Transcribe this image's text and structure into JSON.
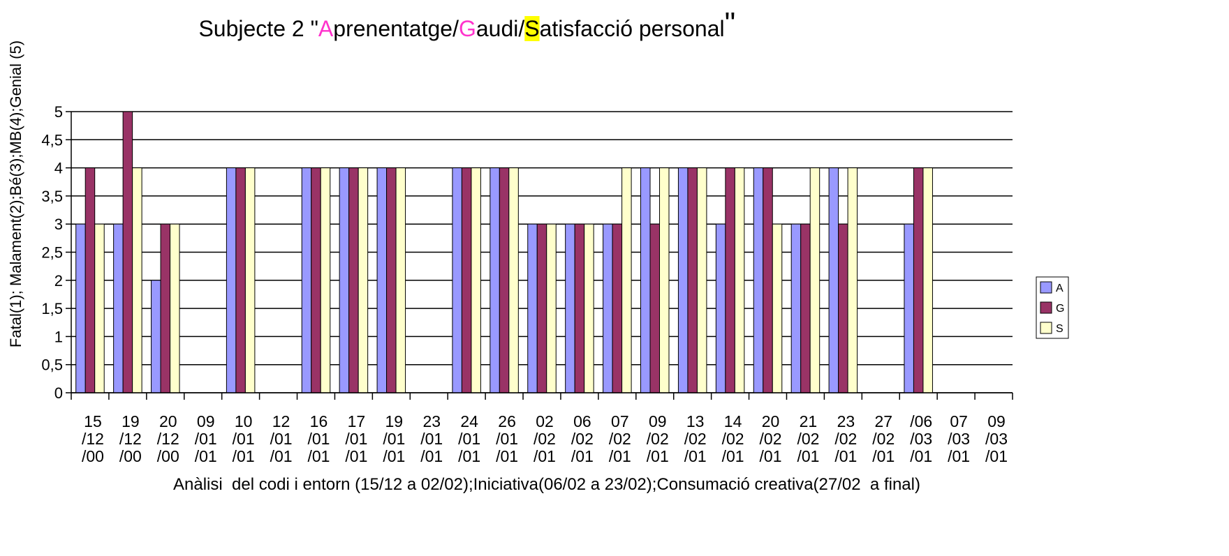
{
  "chart_data": {
    "type": "bar",
    "title": [
      "Subjecte 2 \"",
      "A",
      "prenentatge/",
      "G",
      "audi/",
      "S",
      "atisfacció personal",
      "\""
    ],
    "x_label": "Anàlisi  del codi i entorn (15/12 a 02/02);Iniciativa(06/02 a 23/02);Consumació creativa(27/02  a final)",
    "y_label": "Fatal(1); Malament(2);Bé(3);MB(4);Genial (5)",
    "categories": [
      "15/12/00",
      "19/12/00",
      "20/12/00",
      "09/01/01",
      "10/01/01",
      "12/01/01",
      "16/01/01",
      "17/01/01",
      "19/01/01",
      "23/01/01",
      "24/01/01",
      "26/01/01",
      "02/02/01",
      "06/02/01",
      "07/02/01",
      "09/02/01",
      "13/02/01",
      "14/02/01",
      "20/02/01",
      "21/02/01",
      "23/02/01",
      "27/02/01",
      "/06/03/01",
      "07/03/01",
      "09/03/01"
    ],
    "series": [
      {
        "name": "A",
        "color": "#9999ff",
        "values": [
          3,
          3,
          2,
          null,
          4,
          null,
          4,
          4,
          4,
          null,
          4,
          4,
          3,
          3,
          3,
          4,
          4,
          3,
          4,
          3,
          4,
          null,
          3,
          null,
          null
        ]
      },
      {
        "name": "G",
        "color": "#993366",
        "values": [
          4,
          5,
          3,
          null,
          4,
          null,
          4,
          4,
          4,
          null,
          4,
          4,
          3,
          3,
          3,
          3,
          4,
          4,
          4,
          3,
          3,
          null,
          4,
          null,
          null
        ]
      },
      {
        "name": "S",
        "color": "#ffffcc",
        "values": [
          3,
          4,
          3,
          null,
          4,
          null,
          4,
          4,
          4,
          null,
          4,
          4,
          3,
          3,
          4,
          4,
          4,
          4,
          3,
          4,
          4,
          null,
          4,
          null,
          null
        ]
      }
    ],
    "ylim": [
      0,
      5
    ],
    "yticks": [
      0,
      {
        "value": 0.5,
        "label": "0,5"
      },
      1,
      {
        "value": 1.5,
        "label": "1,5"
      },
      2,
      {
        "value": 2.5,
        "label": "2,5"
      },
      3,
      {
        "value": 3.5,
        "label": "3,5"
      },
      4,
      {
        "value": 4.5,
        "label": "4,5"
      },
      5
    ],
    "grid": true,
    "legend": "right"
  }
}
